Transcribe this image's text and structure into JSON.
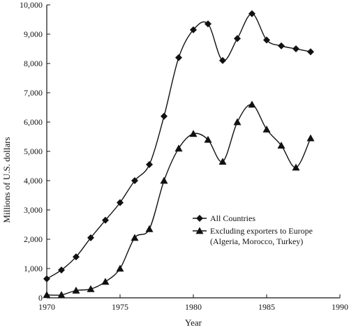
{
  "chart_data": {
    "type": "line",
    "title": "",
    "xlabel": "Year",
    "ylabel": "Millions of U.S. dollars",
    "xlim": [
      1970,
      1990
    ],
    "ylim": [
      0,
      10000
    ],
    "x_ticks": [
      1970,
      1975,
      1980,
      1985,
      1990
    ],
    "x_tick_labels": [
      "1970",
      "1975",
      "1980",
      "1985",
      "1990"
    ],
    "y_ticks": [
      0,
      1000,
      2000,
      3000,
      4000,
      5000,
      6000,
      7000,
      8000,
      9000,
      10000
    ],
    "y_tick_labels": [
      "0",
      "1,000",
      "2,000",
      "3,000",
      "4,000",
      "5,000",
      "6,000",
      "7,000",
      "8,000",
      "9,000",
      "10,000"
    ],
    "grid": false,
    "legend_position": "center-right",
    "series": [
      {
        "name": "All Countries",
        "marker": "diamond",
        "x": [
          1970,
          1971,
          1972,
          1973,
          1974,
          1975,
          1976,
          1977,
          1978,
          1979,
          1980,
          1981,
          1982,
          1983,
          1984,
          1985,
          1986,
          1987,
          1988
        ],
        "values": [
          650,
          950,
          1400,
          2050,
          2650,
          3250,
          4000,
          4550,
          6200,
          8200,
          9150,
          9350,
          8100,
          8850,
          9700,
          8800,
          8600,
          8500,
          8400
        ]
      },
      {
        "name": "Excluding exporters to Europe\n(Algeria, Morocco, Turkey)",
        "marker": "triangle",
        "x": [
          1970,
          1971,
          1972,
          1973,
          1974,
          1975,
          1976,
          1977,
          1978,
          1979,
          1980,
          1981,
          1982,
          1983,
          1984,
          1985,
          1986,
          1987,
          1988
        ],
        "values": [
          100,
          100,
          250,
          300,
          550,
          1000,
          2050,
          2350,
          4000,
          5100,
          5600,
          5400,
          4650,
          6000,
          6600,
          5750,
          5200,
          4450,
          5450
        ]
      }
    ],
    "legend_labels": [
      [
        "All Countries"
      ],
      [
        "Excluding exporters to Europe",
        "(Algeria, Morocco, Turkey)"
      ]
    ]
  },
  "style": {
    "line_color": "#111111",
    "background": "#ffffff"
  }
}
